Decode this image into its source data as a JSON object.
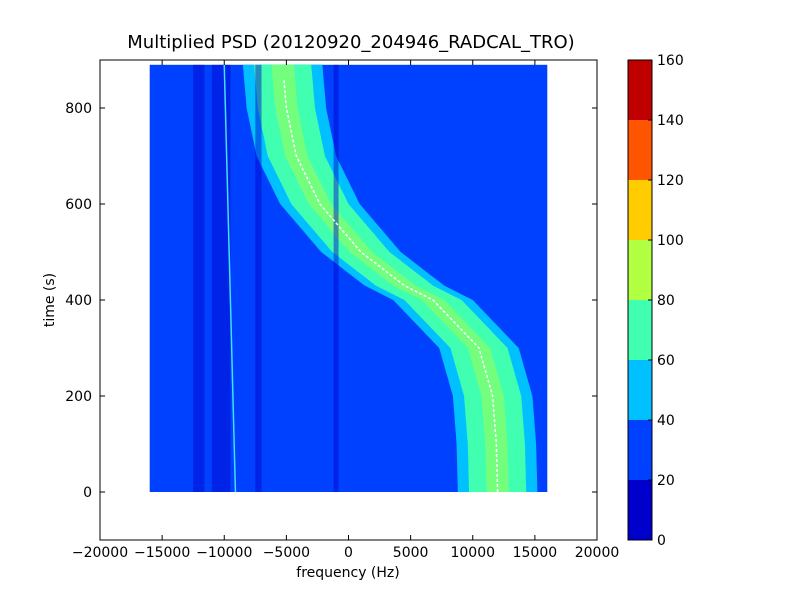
{
  "chart_data": {
    "type": "heatmap",
    "title": "Multiplied PSD (20120920_204946_RADCAL_TRO)",
    "xlabel": "frequency (Hz)",
    "ylabel": "time (s)",
    "xlim": [
      -20000,
      20000
    ],
    "ylim": [
      -100,
      900
    ],
    "x_ticks": [
      -20000,
      -15000,
      -10000,
      -5000,
      0,
      5000,
      10000,
      15000,
      20000
    ],
    "y_ticks": [
      0,
      200,
      400,
      600,
      800
    ],
    "data_extent": {
      "x": [
        -16000,
        16000
      ],
      "y": [
        0,
        890
      ]
    },
    "track": {
      "description_points": [
        {
          "t": 890,
          "f": -5300
        },
        {
          "t": 800,
          "f": -5000
        },
        {
          "t": 700,
          "f": -4200
        },
        {
          "t": 600,
          "f": -2300
        },
        {
          "t": 500,
          "f": 1000
        },
        {
          "t": 430,
          "f": 4500
        },
        {
          "t": 400,
          "f": 6800
        },
        {
          "t": 300,
          "f": 10500
        },
        {
          "t": 200,
          "f": 11600
        },
        {
          "t": 100,
          "f": 11900
        },
        {
          "t": 0,
          "f": 12000
        }
      ]
    },
    "colorbar": {
      "min": 0,
      "max": 160,
      "ticks": [
        0,
        20,
        40,
        60,
        80,
        100,
        120,
        140,
        160
      ],
      "colors": [
        "#0000cd",
        "#0040ff",
        "#00c0ff",
        "#40ffb0",
        "#b0ff40",
        "#ffcc00",
        "#ff5500",
        "#c00000"
      ]
    },
    "grid": false
  }
}
